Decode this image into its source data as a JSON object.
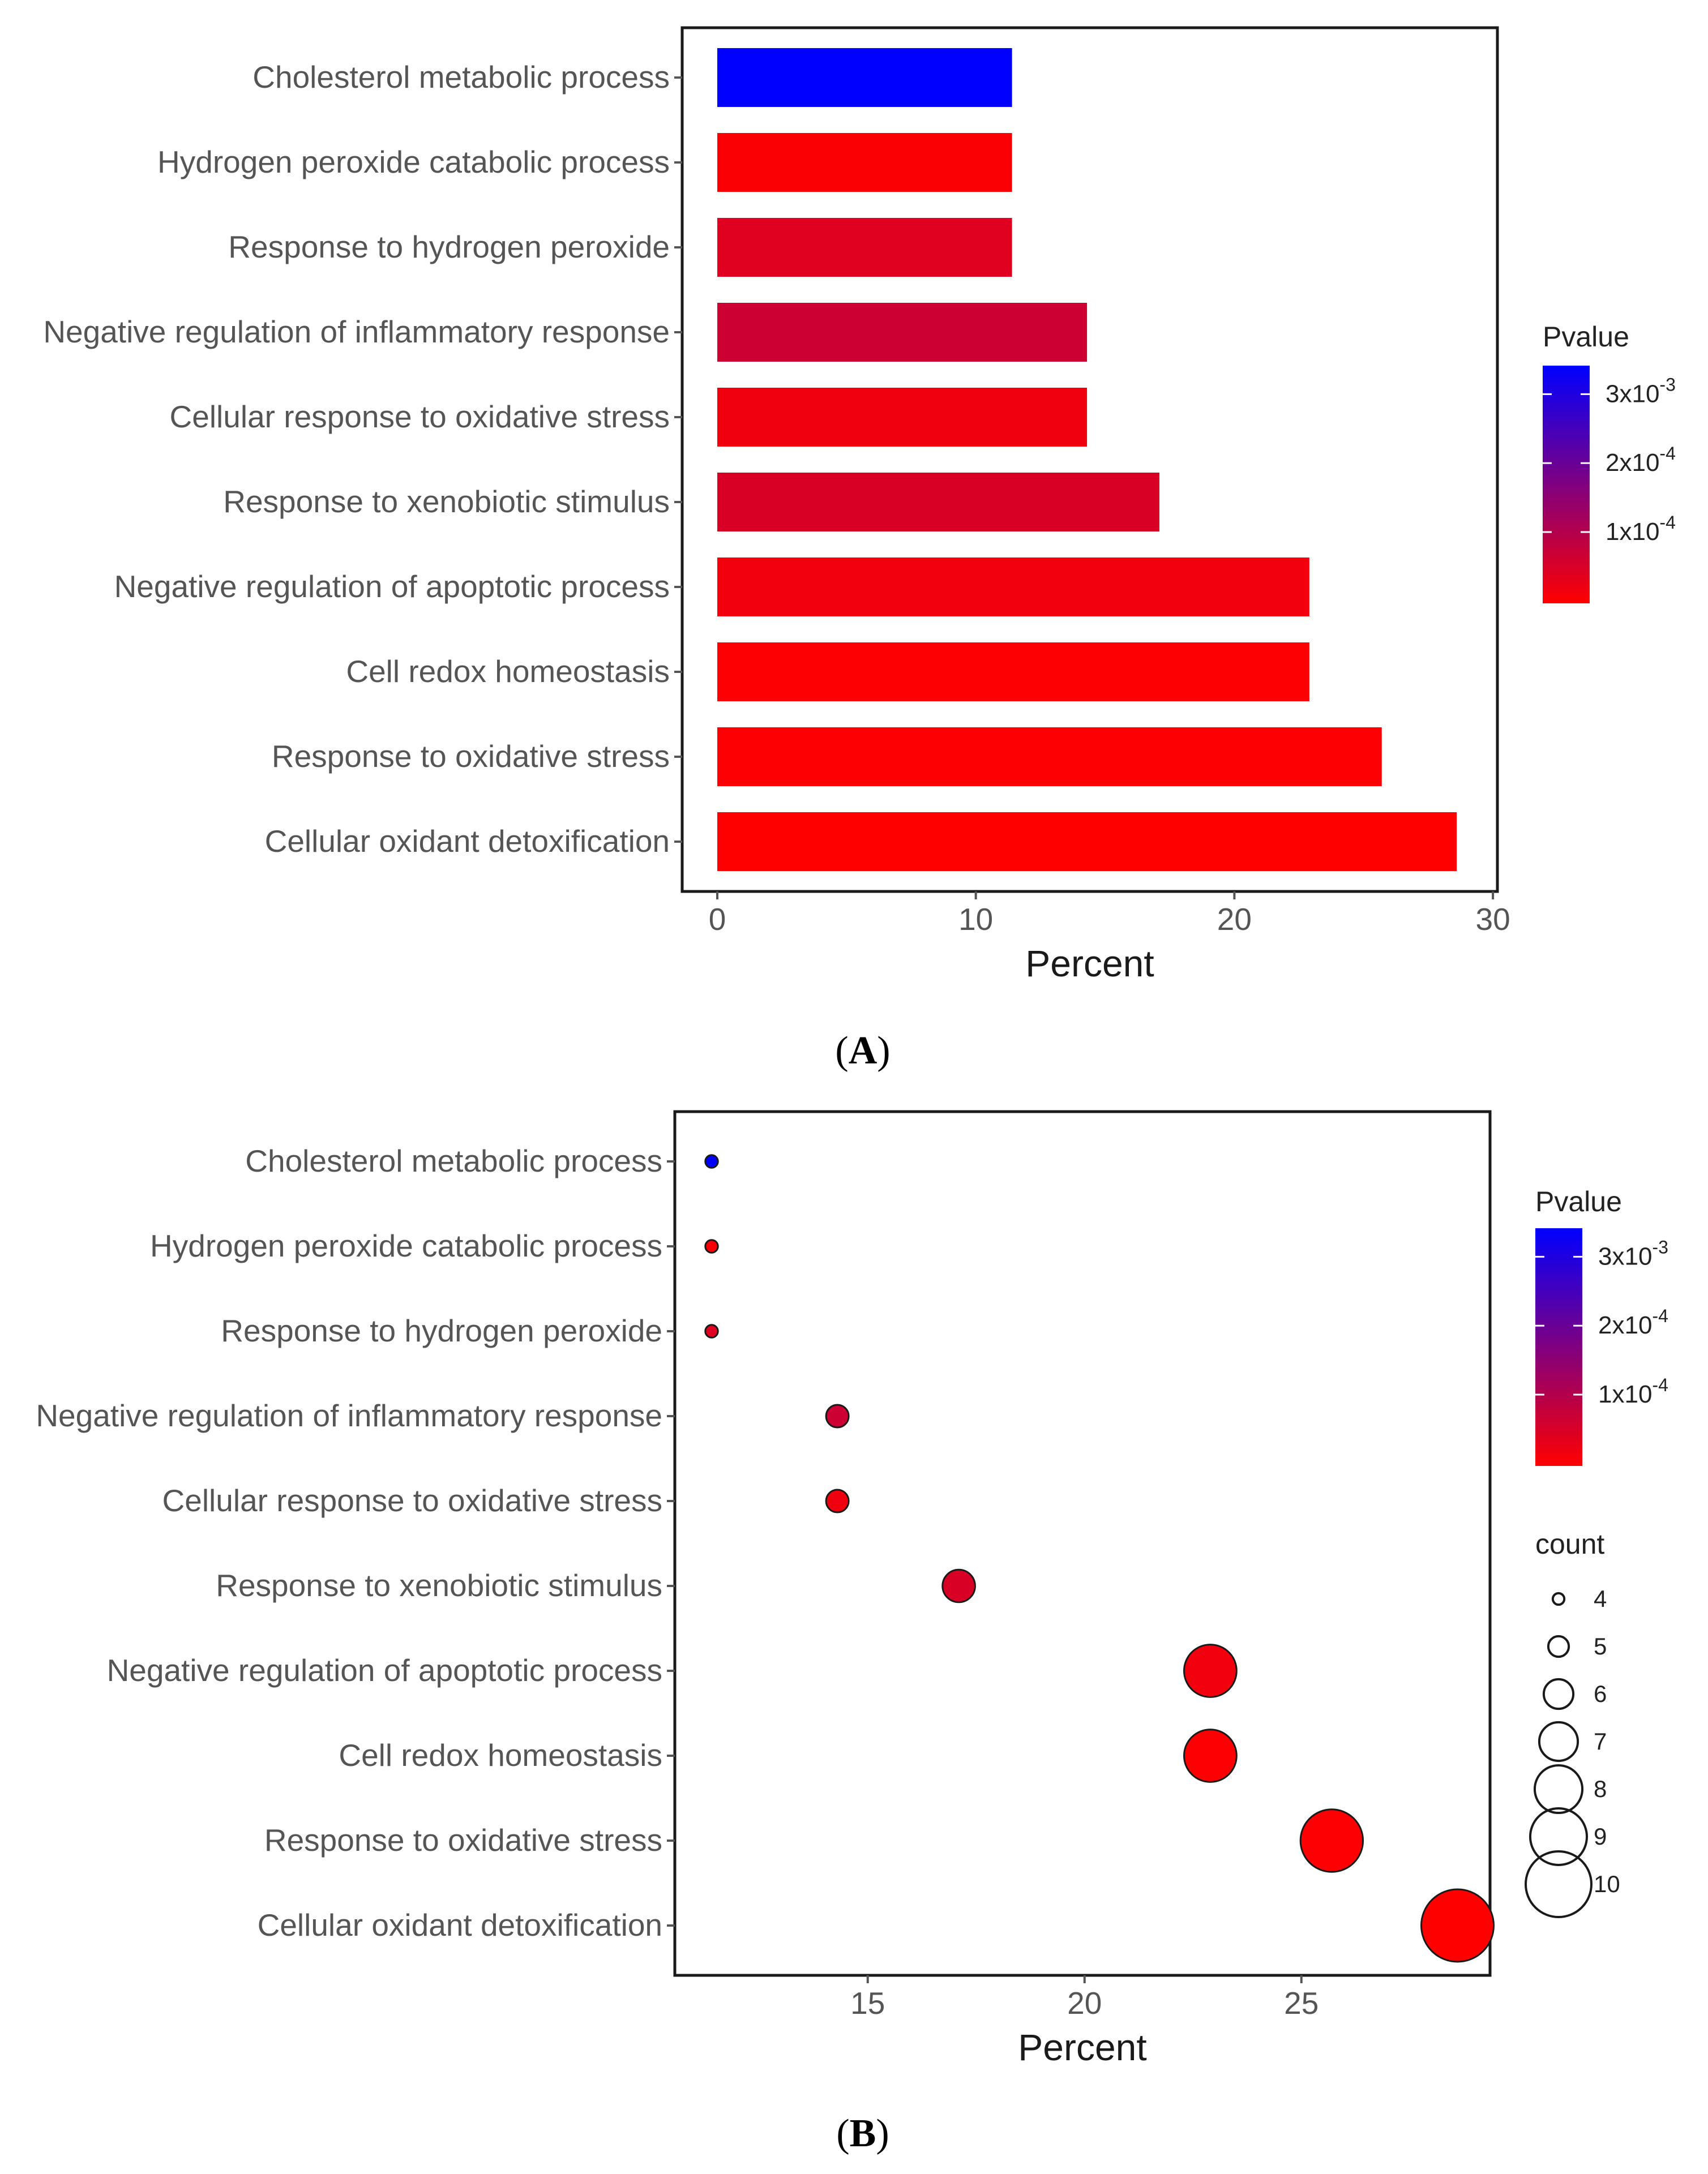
{
  "chart_data": [
    {
      "type": "bar",
      "orientation": "horizontal",
      "panel_label": {
        "open": "(",
        "letter": "A",
        "close": ")"
      },
      "categories": [
        "Cholesterol metabolic process",
        "Hydrogen peroxide catabolic process",
        "Response to hydrogen peroxide",
        "Negative regulation of inflammatory response",
        "Cellular response to oxidative stress",
        "Response to xenobiotic stimulus",
        "Negative regulation of apoptotic process",
        "Cell redox homeostasis",
        "Response to oxidative stress",
        "Cellular oxidant detoxification"
      ],
      "values": [
        11.4,
        11.4,
        11.4,
        14.3,
        14.3,
        17.1,
        22.9,
        22.9,
        25.7,
        28.6
      ],
      "pvalue_fraction": [
        1.0,
        0.02,
        0.12,
        0.2,
        0.06,
        0.15,
        0.05,
        0.01,
        0.01,
        0.0
      ],
      "xlabel": "Percent",
      "ylabel": "",
      "xlim": [
        0,
        30
      ],
      "xticks": [
        0,
        10,
        20,
        30
      ],
      "grid": false,
      "legend": {
        "title": "Pvalue",
        "position": "right",
        "low_color": "#ff0000",
        "high_color": "#0000ff",
        "ticks": [
          {
            "mantissa": "3x10",
            "exponent": "-3",
            "fraction": 0.88
          },
          {
            "mantissa": "2x10",
            "exponent": "-4",
            "fraction": 0.59
          },
          {
            "mantissa": "1x10",
            "exponent": "-4",
            "fraction": 0.3
          }
        ]
      }
    },
    {
      "type": "scatter",
      "panel_label": {
        "open": "(",
        "letter": "B",
        "close": ")"
      },
      "categories": [
        "Cholesterol metabolic process",
        "Hydrogen peroxide catabolic process",
        "Response to hydrogen peroxide",
        "Negative regulation of inflammatory response",
        "Cellular response to oxidative stress",
        "Response to xenobiotic stimulus",
        "Negative regulation of apoptotic process",
        "Cell redox homeostasis",
        "Response to oxidative stress",
        "Cellular oxidant detoxification"
      ],
      "x": [
        11.4,
        11.4,
        11.4,
        14.3,
        14.3,
        17.1,
        22.9,
        22.9,
        25.7,
        28.6
      ],
      "count": [
        4,
        4,
        4,
        5,
        5,
        6,
        8,
        8,
        9,
        10
      ],
      "pvalue_fraction": [
        1.0,
        0.02,
        0.12,
        0.2,
        0.06,
        0.15,
        0.05,
        0.01,
        0.01,
        0.0
      ],
      "xlabel": "Percent",
      "ylabel": "",
      "xlim": [
        10.6,
        29.5
      ],
      "xticks": [
        15,
        20,
        25
      ],
      "grid": false,
      "color_legend": {
        "title": "Pvalue",
        "position": "right",
        "low_color": "#ff0000",
        "high_color": "#0000ff",
        "ticks": [
          {
            "mantissa": "3x10",
            "exponent": "-3",
            "fraction": 0.88
          },
          {
            "mantissa": "2x10",
            "exponent": "-4",
            "fraction": 0.59
          },
          {
            "mantissa": "1x10",
            "exponent": "-4",
            "fraction": 0.3
          }
        ]
      },
      "size_legend": {
        "title": "count",
        "position": "right",
        "values": [
          4,
          5,
          6,
          7,
          8,
          9,
          10
        ]
      }
    }
  ]
}
